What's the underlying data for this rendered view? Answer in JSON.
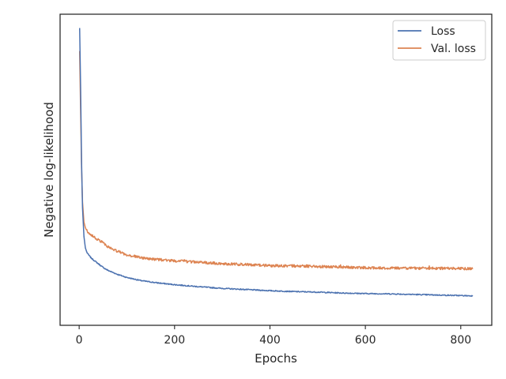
{
  "chart_data": {
    "type": "line",
    "title": "",
    "xlabel": "Epochs",
    "ylabel": "Negative log-likelihood",
    "xlim": [
      -40,
      865
    ],
    "ylim": [
      0,
      1
    ],
    "x_ticks": [
      0,
      200,
      400,
      600,
      800
    ],
    "y_ticks_visible": false,
    "grid": false,
    "legend": "top-right",
    "series": [
      {
        "name": "Loss",
        "color": "#4c72b0",
        "x": [
          1,
          3,
          5,
          7,
          10,
          13,
          16,
          20,
          25,
          30,
          40,
          50,
          60,
          80,
          100,
          130,
          160,
          200,
          250,
          300,
          350,
          400,
          450,
          500,
          550,
          600,
          650,
          700,
          750,
          800,
          825
        ],
        "y": [
          0.985,
          0.78,
          0.52,
          0.36,
          0.26,
          0.22,
          0.205,
          0.195,
          0.185,
          0.178,
          0.165,
          0.152,
          0.142,
          0.128,
          0.117,
          0.106,
          0.099,
          0.092,
          0.085,
          0.079,
          0.075,
          0.071,
          0.068,
          0.066,
          0.063,
          0.061,
          0.06,
          0.058,
          0.056,
          0.054,
          0.053
        ]
      },
      {
        "name": "Val. loss",
        "color": "#dd8452",
        "x": [
          1,
          3,
          5,
          7,
          10,
          13,
          16,
          20,
          25,
          30,
          40,
          50,
          60,
          80,
          100,
          130,
          160,
          200,
          250,
          300,
          350,
          400,
          450,
          500,
          550,
          600,
          650,
          700,
          750,
          800,
          825
        ],
        "y": [
          0.905,
          0.7,
          0.5,
          0.38,
          0.31,
          0.29,
          0.28,
          0.272,
          0.265,
          0.258,
          0.248,
          0.238,
          0.225,
          0.208,
          0.196,
          0.186,
          0.18,
          0.175,
          0.17,
          0.165,
          0.162,
          0.158,
          0.157,
          0.155,
          0.153,
          0.151,
          0.15,
          0.149,
          0.149,
          0.148,
          0.148
        ]
      }
    ]
  }
}
